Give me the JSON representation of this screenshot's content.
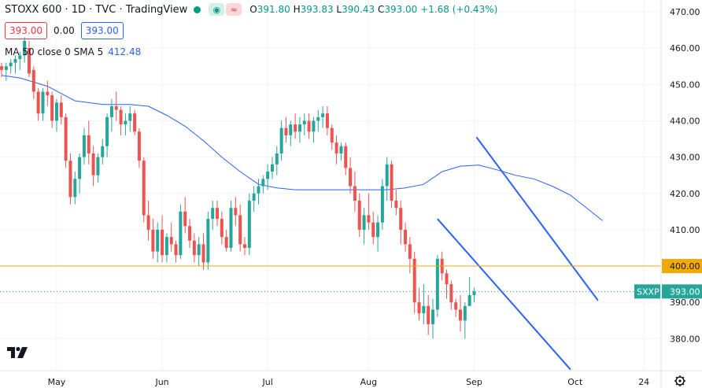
{
  "header": {
    "title": "STOXX 600 · 1D · TVC · TradingView",
    "ohlc": {
      "o_label": "O",
      "o": "391.80",
      "h_label": "H",
      "h": "393.83",
      "l_label": "L",
      "l": "390.43",
      "c_label": "C",
      "c": "393.00",
      "change": "+1.68 (+0.43%)"
    }
  },
  "quote": {
    "bid": "393.00",
    "spread": "0.00",
    "ask": "393.00"
  },
  "indicator": {
    "label": "MA 50 close 0 SMA 5",
    "value": "412.48"
  },
  "colors": {
    "up": "#26a69a",
    "down": "#ef5350",
    "ma": "#2962ff",
    "hline": "#f2a900",
    "axis_text": "#131722",
    "accent": "#2962ff"
  },
  "chart_data": {
    "type": "candlestick",
    "title": "STOXX 600",
    "symbol": "SXXP",
    "ylim": [
      370,
      473
    ],
    "y_ticks": [
      380,
      390,
      400,
      410,
      420,
      430,
      440,
      450,
      460,
      470
    ],
    "y_tick_labels": [
      "380.00",
      "390.00",
      "400.00",
      "410.00",
      "420.00",
      "430.00",
      "440.00",
      "450.00",
      "460.00",
      "470.00"
    ],
    "x_labels": [
      {
        "label": "May",
        "index": 12
      },
      {
        "label": "Jun",
        "index": 35
      },
      {
        "label": "Jul",
        "index": 58
      },
      {
        "label": "Aug",
        "index": 80
      },
      {
        "label": "Sep",
        "index": 103
      },
      {
        "label": "Oct",
        "index": 125
      },
      {
        "label": "24",
        "index": 140
      }
    ],
    "horizontal_line": {
      "value": 400.0,
      "label": "400.00"
    },
    "last_price": {
      "value": 393.0,
      "label": "393.00",
      "symbol": "SXXP"
    },
    "candles": [
      [
        455,
        456,
        452,
        454
      ],
      [
        454,
        456,
        451,
        455
      ],
      [
        455,
        457,
        453,
        456
      ],
      [
        456,
        458,
        453,
        457
      ],
      [
        457,
        459,
        454,
        458
      ],
      [
        458,
        463,
        456,
        462
      ],
      [
        460,
        462,
        452,
        453
      ],
      [
        454,
        455,
        446,
        448
      ],
      [
        448,
        449,
        440,
        442
      ],
      [
        442,
        449,
        440,
        448
      ],
      [
        448,
        451,
        444,
        447
      ],
      [
        447,
        448,
        438,
        440
      ],
      [
        440,
        446,
        437,
        445
      ],
      [
        445,
        447,
        439,
        441
      ],
      [
        441,
        442,
        427,
        429
      ],
      [
        429,
        431,
        417,
        419
      ],
      [
        419,
        426,
        417,
        424
      ],
      [
        424,
        431,
        420,
        430
      ],
      [
        430,
        438,
        428,
        436
      ],
      [
        436,
        440,
        428,
        431
      ],
      [
        431,
        433,
        422,
        425
      ],
      [
        425,
        431,
        423,
        430
      ],
      [
        430,
        435,
        428,
        433
      ],
      [
        433,
        442,
        430,
        441
      ],
      [
        441,
        446,
        437,
        444
      ],
      [
        444,
        448,
        440,
        443
      ],
      [
        443,
        444,
        436,
        439
      ],
      [
        439,
        442,
        436,
        440
      ],
      [
        440,
        444,
        437,
        442
      ],
      [
        442,
        443,
        436,
        437
      ],
      [
        437,
        438,
        427,
        429
      ],
      [
        429,
        430,
        412,
        414
      ],
      [
        414,
        418,
        407,
        410
      ],
      [
        410,
        413,
        402,
        404
      ],
      [
        404,
        412,
        401,
        410
      ],
      [
        410,
        414,
        401,
        403
      ],
      [
        403,
        409,
        401,
        408
      ],
      [
        408,
        412,
        404,
        406
      ],
      [
        406,
        407,
        401,
        403
      ],
      [
        403,
        417,
        402,
        415
      ],
      [
        415,
        419,
        409,
        411
      ],
      [
        411,
        413,
        405,
        407
      ],
      [
        407,
        409,
        401,
        403
      ],
      [
        403,
        408,
        400,
        406
      ],
      [
        406,
        409,
        399,
        401
      ],
      [
        401,
        415,
        399,
        413
      ],
      [
        413,
        418,
        410,
        416
      ],
      [
        416,
        418,
        411,
        413
      ],
      [
        413,
        415,
        406,
        408
      ],
      [
        408,
        410,
        404,
        405
      ],
      [
        405,
        418,
        404,
        416
      ],
      [
        416,
        419,
        411,
        414
      ],
      [
        414,
        417,
        404,
        406
      ],
      [
        406,
        408,
        403,
        405
      ],
      [
        405,
        420,
        403,
        418
      ],
      [
        418,
        422,
        415,
        420
      ],
      [
        420,
        424,
        417,
        422
      ],
      [
        422,
        425,
        420,
        424
      ],
      [
        424,
        428,
        421,
        426
      ],
      [
        426,
        430,
        424,
        428
      ],
      [
        428,
        433,
        425,
        431
      ],
      [
        431,
        440,
        429,
        438
      ],
      [
        438,
        441,
        434,
        436
      ],
      [
        436,
        440,
        433,
        439
      ],
      [
        439,
        442,
        435,
        437
      ],
      [
        437,
        441,
        434,
        439
      ],
      [
        439,
        442,
        436,
        440
      ],
      [
        440,
        442,
        435,
        437
      ],
      [
        437,
        441,
        434,
        440
      ],
      [
        440,
        443,
        437,
        441
      ],
      [
        441,
        444,
        438,
        442
      ],
      [
        442,
        444,
        436,
        438
      ],
      [
        438,
        439,
        432,
        434
      ],
      [
        434,
        436,
        428,
        431
      ],
      [
        431,
        434,
        429,
        433
      ],
      [
        433,
        434,
        425,
        427
      ],
      [
        427,
        430,
        420,
        422
      ],
      [
        422,
        426,
        415,
        418
      ],
      [
        418,
        420,
        408,
        410
      ],
      [
        410,
        416,
        406,
        414
      ],
      [
        414,
        420,
        410,
        412
      ],
      [
        412,
        415,
        406,
        408
      ],
      [
        408,
        414,
        404,
        412
      ],
      [
        412,
        424,
        410,
        422
      ],
      [
        422,
        430,
        418,
        428
      ],
      [
        428,
        429,
        416,
        418
      ],
      [
        418,
        421,
        414,
        416
      ],
      [
        416,
        418,
        406,
        410
      ],
      [
        410,
        412,
        404,
        406
      ],
      [
        406,
        408,
        398,
        402
      ],
      [
        402,
        404,
        387,
        390
      ],
      [
        390,
        394,
        385,
        387
      ],
      [
        387,
        395,
        384,
        389
      ],
      [
        389,
        392,
        381,
        384
      ],
      [
        384,
        391,
        380,
        388
      ],
      [
        388,
        403,
        386,
        402
      ],
      [
        402,
        404,
        396,
        398
      ],
      [
        398,
        399,
        391,
        395
      ],
      [
        395,
        396,
        388,
        390
      ],
      [
        390,
        391,
        386,
        388
      ],
      [
        388,
        392,
        382,
        385
      ],
      [
        385,
        390,
        380,
        389
      ],
      [
        389,
        397,
        389,
        392
      ],
      [
        392,
        394,
        390,
        393
      ]
    ],
    "ma50": [
      [
        0,
        452.5
      ],
      [
        4,
        451.8
      ],
      [
        10,
        449.5
      ],
      [
        16,
        445.5
      ],
      [
        22,
        444.5
      ],
      [
        28,
        444.5
      ],
      [
        32,
        444
      ],
      [
        36,
        441.5
      ],
      [
        40,
        438.5
      ],
      [
        44,
        434.5
      ],
      [
        48,
        430
      ],
      [
        52,
        426
      ],
      [
        56,
        422.5
      ],
      [
        60,
        421.5
      ],
      [
        64,
        421
      ],
      [
        68,
        421
      ],
      [
        72,
        421
      ],
      [
        76,
        421
      ],
      [
        80,
        421
      ],
      [
        84,
        421
      ],
      [
        88,
        421.5
      ],
      [
        92,
        422.5
      ],
      [
        96,
        426
      ],
      [
        100,
        427.5
      ],
      [
        104,
        427.8
      ],
      [
        108,
        426.5
      ],
      [
        112,
        425
      ],
      [
        116,
        424
      ],
      [
        120,
        422
      ],
      [
        124,
        419.5
      ],
      [
        128,
        415.5
      ],
      [
        131,
        412.5
      ]
    ],
    "channel_upper": [
      [
        103.5,
        435.5
      ],
      [
        130,
        390.5
      ]
    ],
    "channel_lower": [
      [
        95,
        413
      ],
      [
        124,
        371.5
      ]
    ]
  }
}
